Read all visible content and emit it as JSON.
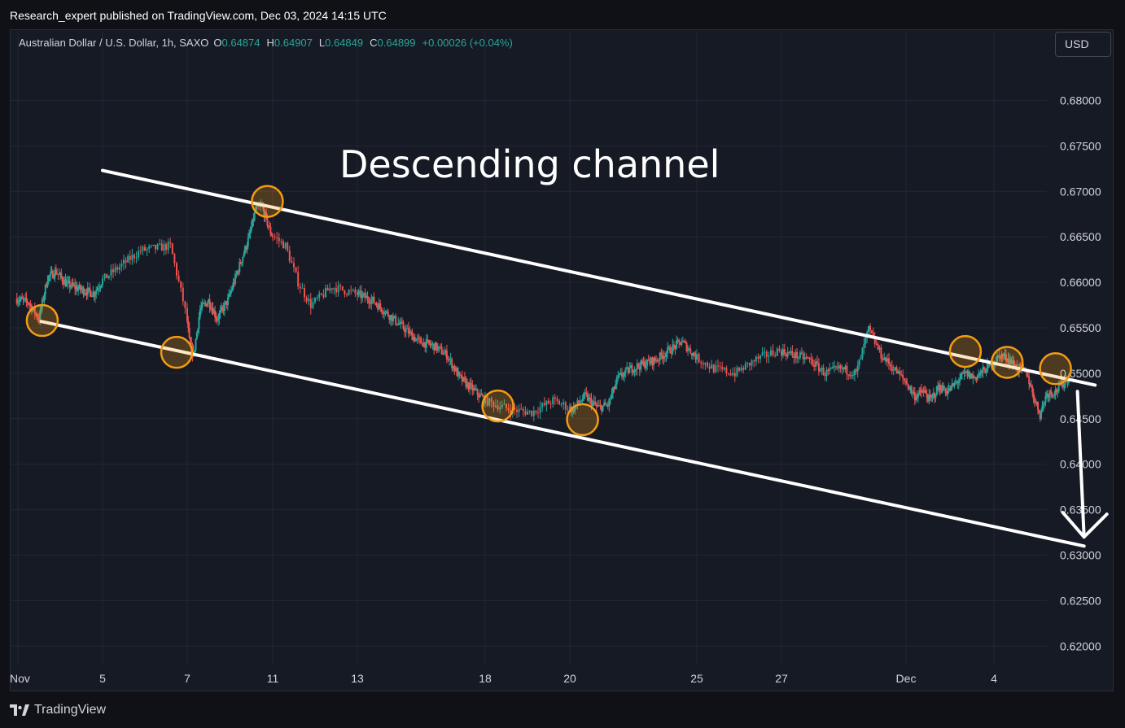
{
  "header": {
    "published": "Research_expert published on TradingView.com, Dec 03, 2024 14:15 UTC"
  },
  "legend": {
    "symbol": "Australian Dollar / U.S. Dollar, 1h, SAXO",
    "open_key": "O",
    "open": "0.64874",
    "high_key": "H",
    "high": "0.64907",
    "low_key": "L",
    "low": "0.64849",
    "close_key": "C",
    "close": "0.64899",
    "change": "+0.00026 (+0.04%)"
  },
  "currency_button": "USD",
  "footer": {
    "brand": "TradingView"
  },
  "colors": {
    "up": "#26a69a",
    "down": "#ef5350",
    "annotation": "#ffffff",
    "marker": "#f39c12",
    "grid": "#232733",
    "axis_text": "#d1d4dc"
  },
  "chart_data": {
    "type": "candlestick",
    "annotation_text": "Descending channel",
    "y_ticks": [
      "0.68000",
      "0.67500",
      "0.67000",
      "0.66500",
      "0.66000",
      "0.65500",
      "0.65000",
      "0.64500",
      "0.64000",
      "0.63500",
      "0.63000",
      "0.62500",
      "0.62000"
    ],
    "ylim": [
      0.619,
      0.6855
    ],
    "x_ticks": [
      {
        "label": "Nov",
        "day": 1.0
      },
      {
        "label": "5",
        "day": 5.0
      },
      {
        "label": "7",
        "day": 7.0
      },
      {
        "label": "11",
        "day": 11.0
      },
      {
        "label": "13",
        "day": 13.0
      },
      {
        "label": "18",
        "day": 18.0
      },
      {
        "label": "20",
        "day": 20.0
      },
      {
        "label": "25",
        "day": 25.0
      },
      {
        "label": "27",
        "day": 27.0
      },
      {
        "label": "Dec",
        "day": 31.0
      },
      {
        "label": "4",
        "day": 35.0
      }
    ],
    "price_path": [
      {
        "day": 0.9,
        "price": 0.6582
      },
      {
        "day": 1.5,
        "price": 0.6578
      },
      {
        "day": 2.0,
        "price": 0.656
      },
      {
        "day": 2.4,
        "price": 0.6605
      },
      {
        "day": 2.8,
        "price": 0.6612
      },
      {
        "day": 3.3,
        "price": 0.6598
      },
      {
        "day": 4.0,
        "price": 0.6592
      },
      {
        "day": 4.6,
        "price": 0.6588
      },
      {
        "day": 5.2,
        "price": 0.661
      },
      {
        "day": 5.9,
        "price": 0.6635
      },
      {
        "day": 6.6,
        "price": 0.664
      },
      {
        "day": 6.9,
        "price": 0.658
      },
      {
        "day": 7.1,
        "price": 0.6535
      },
      {
        "day": 7.3,
        "price": 0.652
      },
      {
        "day": 7.6,
        "price": 0.657
      },
      {
        "day": 8.0,
        "price": 0.658
      },
      {
        "day": 8.4,
        "price": 0.656
      },
      {
        "day": 8.9,
        "price": 0.658
      },
      {
        "day": 9.4,
        "price": 0.6615
      },
      {
        "day": 9.9,
        "price": 0.665
      },
      {
        "day": 10.2,
        "price": 0.668
      },
      {
        "day": 10.5,
        "price": 0.6683
      },
      {
        "day": 10.9,
        "price": 0.6655
      },
      {
        "day": 11.3,
        "price": 0.664
      },
      {
        "day": 11.6,
        "price": 0.66
      },
      {
        "day": 11.9,
        "price": 0.6575
      },
      {
        "day": 12.4,
        "price": 0.6595
      },
      {
        "day": 13.0,
        "price": 0.6587
      },
      {
        "day": 13.6,
        "price": 0.658
      },
      {
        "day": 14.2,
        "price": 0.6565
      },
      {
        "day": 14.8,
        "price": 0.655
      },
      {
        "day": 15.4,
        "price": 0.6535
      },
      {
        "day": 16.0,
        "price": 0.653
      },
      {
        "day": 16.5,
        "price": 0.652
      },
      {
        "day": 17.0,
        "price": 0.6495
      },
      {
        "day": 17.6,
        "price": 0.648
      },
      {
        "day": 18.1,
        "price": 0.6468
      },
      {
        "day": 18.6,
        "price": 0.646
      },
      {
        "day": 19.1,
        "price": 0.6457
      },
      {
        "day": 19.6,
        "price": 0.647
      },
      {
        "day": 20.1,
        "price": 0.646
      },
      {
        "day": 20.6,
        "price": 0.6475
      },
      {
        "day": 21.1,
        "price": 0.6462
      },
      {
        "day": 21.5,
        "price": 0.6465
      },
      {
        "day": 21.9,
        "price": 0.6495
      },
      {
        "day": 22.4,
        "price": 0.6505
      },
      {
        "day": 22.9,
        "price": 0.651
      },
      {
        "day": 23.4,
        "price": 0.6515
      },
      {
        "day": 23.9,
        "price": 0.6525
      },
      {
        "day": 24.4,
        "price": 0.6535
      },
      {
        "day": 24.9,
        "price": 0.652
      },
      {
        "day": 25.4,
        "price": 0.6505
      },
      {
        "day": 25.9,
        "price": 0.65
      },
      {
        "day": 26.4,
        "price": 0.6515
      },
      {
        "day": 26.9,
        "price": 0.6525
      },
      {
        "day": 27.4,
        "price": 0.652
      },
      {
        "day": 27.9,
        "price": 0.6515
      },
      {
        "day": 28.4,
        "price": 0.65
      },
      {
        "day": 28.9,
        "price": 0.6505
      },
      {
        "day": 29.4,
        "price": 0.65
      },
      {
        "day": 29.8,
        "price": 0.6548
      },
      {
        "day": 30.2,
        "price": 0.652
      },
      {
        "day": 30.6,
        "price": 0.6505
      },
      {
        "day": 31.0,
        "price": 0.649
      },
      {
        "day": 31.4,
        "price": 0.6475
      },
      {
        "day": 31.8,
        "price": 0.648
      },
      {
        "day": 32.1,
        "price": 0.647
      },
      {
        "day": 32.5,
        "price": 0.6485
      },
      {
        "day": 32.9,
        "price": 0.648
      },
      {
        "day": 33.3,
        "price": 0.649
      },
      {
        "day": 33.7,
        "price": 0.65
      },
      {
        "day": 34.1,
        "price": 0.6495
      },
      {
        "day": 34.5,
        "price": 0.6502
      },
      {
        "day": 34.9,
        "price": 0.651
      },
      {
        "day": 35.3,
        "price": 0.652
      },
      {
        "day": 35.7,
        "price": 0.6515
      },
      {
        "day": 36.1,
        "price": 0.6505
      },
      {
        "day": 36.5,
        "price": 0.65
      },
      {
        "day": 36.8,
        "price": 0.6475
      },
      {
        "day": 37.1,
        "price": 0.6455
      },
      {
        "day": 37.4,
        "price": 0.6478
      },
      {
        "day": 37.8,
        "price": 0.648
      },
      {
        "day": 38.2,
        "price": 0.649
      },
      {
        "day": 38.4,
        "price": 0.6495
      }
    ],
    "channel_upper": [
      {
        "day": 5.0,
        "price": 0.6723
      },
      {
        "day": 39.6,
        "price": 0.6487
      }
    ],
    "channel_lower": [
      {
        "day": 2.1,
        "price": 0.6557
      },
      {
        "day": 39.1,
        "price": 0.631
      }
    ],
    "touch_points": [
      {
        "day": 2.15,
        "price": 0.6558
      },
      {
        "day": 6.75,
        "price": 0.6523
      },
      {
        "day": 10.75,
        "price": 0.6689
      },
      {
        "day": 18.3,
        "price": 0.6464
      },
      {
        "day": 20.5,
        "price": 0.6449
      },
      {
        "day": 33.7,
        "price": 0.6524
      },
      {
        "day": 35.6,
        "price": 0.6512
      },
      {
        "day": 37.8,
        "price": 0.6505
      }
    ],
    "projection_arrow": [
      {
        "day": 38.8,
        "price": 0.648
      },
      {
        "day": 39.1,
        "price": 0.632
      }
    ]
  }
}
